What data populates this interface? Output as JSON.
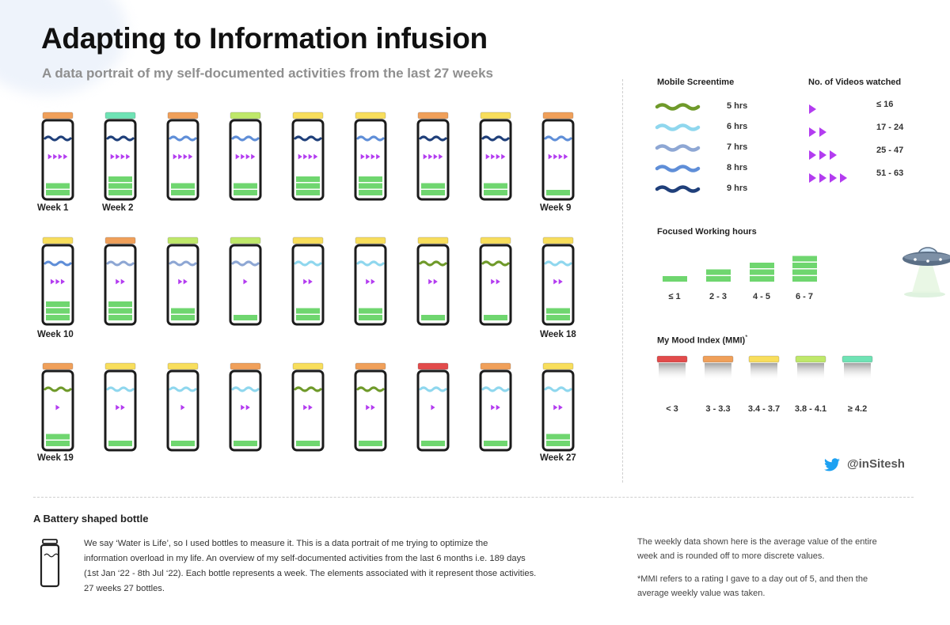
{
  "header": {
    "title": "Adapting to Information infusion",
    "subtitle": "A data portrait of my self-documented activities from the last 27 weeks"
  },
  "colors": {
    "mood": {
      "lt3": "#e24b4b",
      "3-3.3": "#f0a05a",
      "3.4-3.7": "#f8de5c",
      "3.8-4.1": "#bfe86a",
      "ge4.2": "#6fe3b5"
    },
    "screen": {
      "5": "#6f9a2a",
      "6": "#8fd7ee",
      "7": "#8ea7d4",
      "8": "#5f8ed8",
      "9": "#1f3f7a"
    },
    "videos": "#b33cf0",
    "work": "#6fd66f",
    "twitter": "#1da1f2"
  },
  "weeks": [
    {
      "cap": "3-3.3",
      "wave": "9",
      "vid": 4,
      "work": 2,
      "label": "Week 1"
    },
    {
      "cap": "ge4.2",
      "wave": "9",
      "vid": 4,
      "work": 3,
      "label": "Week 2"
    },
    {
      "cap": "3-3.3",
      "wave": "8",
      "vid": 4,
      "work": 2,
      "label": ""
    },
    {
      "cap": "3.8-4.1",
      "wave": "8",
      "vid": 4,
      "work": 2,
      "label": ""
    },
    {
      "cap": "3.4-3.7",
      "wave": "9",
      "vid": 4,
      "work": 3,
      "label": ""
    },
    {
      "cap": "3.4-3.7",
      "wave": "8",
      "vid": 4,
      "work": 3,
      "label": ""
    },
    {
      "cap": "3-3.3",
      "wave": "9",
      "vid": 4,
      "work": 2,
      "label": ""
    },
    {
      "cap": "3.4-3.7",
      "wave": "9",
      "vid": 4,
      "work": 2,
      "label": ""
    },
    {
      "cap": "3-3.3",
      "wave": "8",
      "vid": 4,
      "work": 1,
      "label": "Week 9"
    },
    {
      "cap": "3.4-3.7",
      "wave": "8",
      "vid": 3,
      "work": 3,
      "label": "Week 10"
    },
    {
      "cap": "3-3.3",
      "wave": "7",
      "vid": 2,
      "work": 3,
      "label": ""
    },
    {
      "cap": "3.8-4.1",
      "wave": "7",
      "vid": 2,
      "work": 2,
      "label": ""
    },
    {
      "cap": "3.8-4.1",
      "wave": "7",
      "vid": 1,
      "work": 1,
      "label": ""
    },
    {
      "cap": "3.4-3.7",
      "wave": "6",
      "vid": 2,
      "work": 2,
      "label": ""
    },
    {
      "cap": "3.4-3.7",
      "wave": "6",
      "vid": 2,
      "work": 2,
      "label": ""
    },
    {
      "cap": "3.4-3.7",
      "wave": "5",
      "vid": 2,
      "work": 1,
      "label": ""
    },
    {
      "cap": "3.4-3.7",
      "wave": "5",
      "vid": 2,
      "work": 1,
      "label": ""
    },
    {
      "cap": "3.4-3.7",
      "wave": "6",
      "vid": 2,
      "work": 2,
      "label": "Week 18"
    },
    {
      "cap": "3-3.3",
      "wave": "5",
      "vid": 1,
      "work": 2,
      "label": "Week 19"
    },
    {
      "cap": "3.4-3.7",
      "wave": "6",
      "vid": 2,
      "work": 1,
      "label": ""
    },
    {
      "cap": "3.4-3.7",
      "wave": "6",
      "vid": 1,
      "work": 1,
      "label": ""
    },
    {
      "cap": "3-3.3",
      "wave": "6",
      "vid": 2,
      "work": 1,
      "label": ""
    },
    {
      "cap": "3.4-3.7",
      "wave": "5",
      "vid": 2,
      "work": 1,
      "label": ""
    },
    {
      "cap": "3-3.3",
      "wave": "5",
      "vid": 2,
      "work": 1,
      "label": ""
    },
    {
      "cap": "lt3",
      "wave": "6",
      "vid": 1,
      "work": 1,
      "label": ""
    },
    {
      "cap": "3-3.3",
      "wave": "6",
      "vid": 2,
      "work": 1,
      "label": ""
    },
    {
      "cap": "3.4-3.7",
      "wave": "6",
      "vid": 2,
      "work": 2,
      "label": "Week 27"
    }
  ],
  "legend": {
    "screentime": {
      "title": "Mobile Screentime",
      "items": [
        {
          "key": "5",
          "label": "5 hrs"
        },
        {
          "key": "6",
          "label": "6 hrs"
        },
        {
          "key": "7",
          "label": "7 hrs"
        },
        {
          "key": "8",
          "label": "8 hrs"
        },
        {
          "key": "9",
          "label": "9 hrs"
        }
      ]
    },
    "videos": {
      "title": "No. of Videos watched",
      "items": [
        {
          "count": 1,
          "label": "≤ 16"
        },
        {
          "count": 2,
          "label": "17 - 24"
        },
        {
          "count": 3,
          "label": "25 - 47"
        },
        {
          "count": 4,
          "label": "51 - 63"
        }
      ]
    },
    "work": {
      "title": "Focused Working hours",
      "items": [
        {
          "bars": 1,
          "label": "≤ 1"
        },
        {
          "bars": 2,
          "label": "2 - 3"
        },
        {
          "bars": 3,
          "label": "4 - 5"
        },
        {
          "bars": 4,
          "label": "6 - 7"
        }
      ]
    },
    "mood": {
      "title": "My Mood Index (MMI)",
      "title_sup": "*",
      "items": [
        {
          "key": "lt3",
          "label": "< 3"
        },
        {
          "key": "3-3.3",
          "label": "3 - 3.3"
        },
        {
          "key": "3.4-3.7",
          "label": "3.4 - 3.7"
        },
        {
          "key": "3.8-4.1",
          "label": "3.8 - 4.1"
        },
        {
          "key": "ge4.2",
          "label": "≥ 4.2"
        }
      ]
    }
  },
  "credit": {
    "handle": "@inSitesh"
  },
  "footer": {
    "heading": "A Battery shaped bottle",
    "description_lines": [
      "We say ‘Water is Life’, so I used bottles to measure it. This is a data portrait of me trying to optimize the",
      "information overload in my life. An overview of my self-documented activities from the last 6 months i.e. 189 days",
      "(1st Jan ‘22 - 8th Jul ‘22). Each bottle represents a week. The elements associated with it represent those activities.",
      "27 weeks 27 bottles."
    ],
    "note1_lines": [
      "The weekly data shown here is the average value of the entire",
      "week and is rounded off to more discrete values."
    ],
    "note2_lines": [
      "*MMI refers to a rating I gave to a day out of 5, and then the",
      "average weekly value was taken."
    ]
  }
}
